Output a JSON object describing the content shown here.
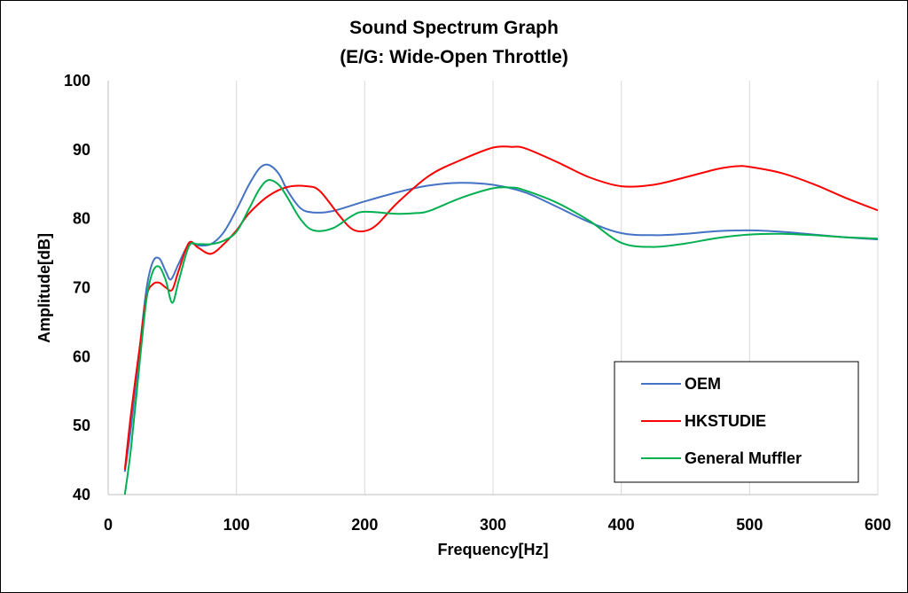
{
  "chart_data": {
    "type": "line",
    "title": "Sound Spectrum Graph",
    "subtitle": "(E/G: Wide-Open Throttle)",
    "xlabel": "Frequency[Hz]",
    "ylabel": "Amplitude[dB]",
    "xlim": [
      0,
      600
    ],
    "ylim": [
      40,
      100
    ],
    "xticks": [
      0,
      100,
      200,
      300,
      400,
      500,
      600
    ],
    "yticks": [
      40,
      50,
      60,
      70,
      80,
      90,
      100
    ],
    "grid": "vertical",
    "legend_position": "bottom-right",
    "series": [
      {
        "name": "OEM",
        "color": "#4472C4",
        "points": [
          [
            13,
            43.3
          ],
          [
            18,
            50
          ],
          [
            25,
            62
          ],
          [
            30,
            70
          ],
          [
            35,
            73.8
          ],
          [
            40,
            74.2
          ],
          [
            45,
            72.3
          ],
          [
            49,
            71.2
          ],
          [
            55,
            73.5
          ],
          [
            63,
            76.3
          ],
          [
            70,
            76.1
          ],
          [
            80,
            76.3
          ],
          [
            90,
            78
          ],
          [
            100,
            81.3
          ],
          [
            110,
            85
          ],
          [
            118,
            87.3
          ],
          [
            125,
            87.8
          ],
          [
            133,
            86.5
          ],
          [
            140,
            84
          ],
          [
            150,
            81.5
          ],
          [
            160,
            80.9
          ],
          [
            175,
            81.1
          ],
          [
            200,
            82.5
          ],
          [
            225,
            83.8
          ],
          [
            250,
            84.8
          ],
          [
            275,
            85.2
          ],
          [
            300,
            84.9
          ],
          [
            325,
            83.8
          ],
          [
            350,
            81.7
          ],
          [
            375,
            79.5
          ],
          [
            400,
            77.9
          ],
          [
            425,
            77.6
          ],
          [
            450,
            77.8
          ],
          [
            475,
            78.2
          ],
          [
            500,
            78.3
          ],
          [
            525,
            78.1
          ],
          [
            550,
            77.7
          ],
          [
            575,
            77.3
          ],
          [
            600,
            77.0
          ]
        ]
      },
      {
        "name": "HKSTUDIE",
        "color": "#FF0000",
        "points": [
          [
            13,
            43.6
          ],
          [
            18,
            52
          ],
          [
            25,
            62
          ],
          [
            30,
            68.8
          ],
          [
            35,
            70.5
          ],
          [
            40,
            70.7
          ],
          [
            45,
            70
          ],
          [
            50,
            69.7
          ],
          [
            55,
            72.5
          ],
          [
            63,
            76.5
          ],
          [
            70,
            75.8
          ],
          [
            80,
            74.9
          ],
          [
            90,
            76.3
          ],
          [
            100,
            78.3
          ],
          [
            110,
            80.8
          ],
          [
            125,
            83.3
          ],
          [
            140,
            84.6
          ],
          [
            155,
            84.7
          ],
          [
            165,
            84
          ],
          [
            180,
            80.5
          ],
          [
            190,
            78.5
          ],
          [
            200,
            78.2
          ],
          [
            210,
            79.2
          ],
          [
            225,
            82.2
          ],
          [
            250,
            86.2
          ],
          [
            275,
            88.5
          ],
          [
            300,
            90.3
          ],
          [
            315,
            90.4
          ],
          [
            325,
            90.2
          ],
          [
            350,
            88.2
          ],
          [
            375,
            86
          ],
          [
            400,
            84.7
          ],
          [
            425,
            84.9
          ],
          [
            450,
            86
          ],
          [
            475,
            87.2
          ],
          [
            490,
            87.6
          ],
          [
            500,
            87.5
          ],
          [
            525,
            86.6
          ],
          [
            550,
            85
          ],
          [
            575,
            83
          ],
          [
            600,
            81.2
          ]
        ]
      },
      {
        "name": "General Muffler",
        "color": "#00B050",
        "points": [
          [
            13,
            40
          ],
          [
            18,
            47
          ],
          [
            25,
            60
          ],
          [
            30,
            68.5
          ],
          [
            35,
            72.4
          ],
          [
            40,
            73
          ],
          [
            45,
            71
          ],
          [
            50,
            67.8
          ],
          [
            55,
            71
          ],
          [
            63,
            76
          ],
          [
            70,
            76.3
          ],
          [
            80,
            76.3
          ],
          [
            90,
            76.8
          ],
          [
            100,
            78.1
          ],
          [
            110,
            81.5
          ],
          [
            118,
            84.3
          ],
          [
            125,
            85.6
          ],
          [
            133,
            84.9
          ],
          [
            140,
            83
          ],
          [
            150,
            79.9
          ],
          [
            160,
            78.3
          ],
          [
            175,
            78.6
          ],
          [
            190,
            80.4
          ],
          [
            200,
            81
          ],
          [
            225,
            80.7
          ],
          [
            240,
            80.8
          ],
          [
            250,
            81.1
          ],
          [
            275,
            83
          ],
          [
            300,
            84.4
          ],
          [
            315,
            84.5
          ],
          [
            325,
            84.1
          ],
          [
            350,
            82.3
          ],
          [
            375,
            79.7
          ],
          [
            400,
            76.5
          ],
          [
            425,
            75.9
          ],
          [
            450,
            76.4
          ],
          [
            475,
            77.2
          ],
          [
            500,
            77.7
          ],
          [
            525,
            77.8
          ],
          [
            550,
            77.6
          ],
          [
            575,
            77.3
          ],
          [
            600,
            77.1
          ]
        ]
      }
    ]
  }
}
